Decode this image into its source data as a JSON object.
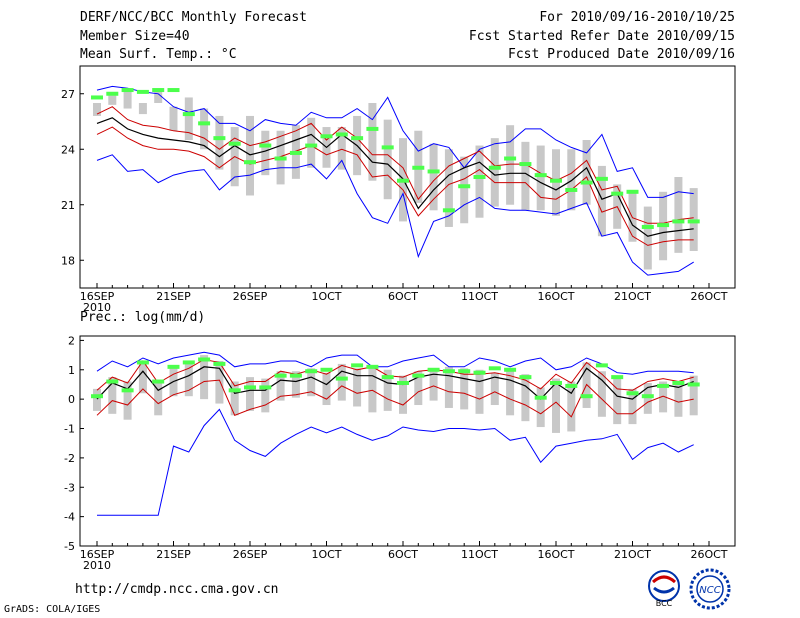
{
  "header": {
    "title": "DERF/NCC/BCC Monthly Forecast",
    "member_size": "Member Size=40",
    "variable": "Mean Surf. Temp.: °C",
    "period": "For 2010/09/16-2010/10/25",
    "started": "Fcst Started Refer Date 2010/09/15",
    "produced": "Fcst Produced Date 2010/09/16"
  },
  "precip_label": "Prec.: log(mm/d)",
  "url": "http://cmdp.ncc.cma.gov.cn",
  "credit": "GrADS: COLA/IGES",
  "logos": {
    "bcc": "BCC",
    "ncc": "NCC"
  },
  "colors": {
    "envelope": "#0000ff",
    "spread": "#cc0000",
    "mean": "#000000",
    "box": "#c8c8c8",
    "obs": "#4cff4c"
  },
  "chart_data": [
    {
      "type": "line",
      "title": "Mean Surf. Temp.: °C",
      "ylim": [
        16.5,
        28.5
      ],
      "yticks": [
        18,
        21,
        24,
        27
      ],
      "ytick_labels": [
        "18",
        "21",
        "24",
        "27"
      ],
      "xtick_days": [
        0,
        5,
        10,
        15,
        20,
        25,
        30,
        35,
        40
      ],
      "xtick_labels": [
        "16SEP",
        "21SEP",
        "26SEP",
        "1OCT",
        "6OCT",
        "11OCT",
        "16OCT",
        "21OCT",
        "26OCT"
      ],
      "xtick_sublabel": "2010",
      "x_days": [
        0,
        1,
        2,
        3,
        4,
        5,
        6,
        7,
        8,
        9,
        10,
        11,
        12,
        13,
        14,
        15,
        16,
        17,
        18,
        19,
        20,
        21,
        22,
        23,
        24,
        25,
        26,
        27,
        28,
        29,
        30,
        31,
        32,
        33,
        34,
        35,
        36,
        37,
        38,
        39
      ],
      "series": [
        {
          "name": "max",
          "values": [
            27.2,
            27.4,
            27.3,
            27.1,
            27.0,
            26.3,
            26.0,
            26.2,
            25.4,
            25.4,
            25.0,
            25.6,
            25.4,
            25.3,
            26.0,
            25.7,
            25.7,
            26.2,
            25.6,
            26.8,
            25.0,
            23.9,
            24.3,
            24.1,
            23.0,
            24.0,
            24.3,
            24.4,
            25.1,
            25.1,
            24.5,
            24.1,
            23.8,
            24.8,
            22.8,
            23.0,
            21.4,
            21.4,
            21.7,
            21.6
          ]
        },
        {
          "name": "upper",
          "values": [
            25.9,
            26.3,
            25.6,
            25.3,
            25.2,
            25.0,
            24.9,
            24.6,
            24.0,
            24.6,
            24.2,
            24.4,
            24.7,
            25.0,
            25.4,
            24.5,
            25.2,
            24.6,
            23.7,
            23.7,
            23.0,
            21.3,
            22.3,
            23.1,
            23.5,
            23.9,
            23.1,
            23.2,
            23.2,
            22.7,
            22.3,
            22.7,
            23.4,
            21.8,
            22.0,
            20.3,
            20.0,
            20.0,
            20.2,
            20.3
          ]
        },
        {
          "name": "mean",
          "values": [
            25.4,
            25.7,
            25.1,
            24.8,
            24.6,
            24.5,
            24.4,
            24.2,
            23.6,
            24.2,
            23.7,
            23.9,
            24.2,
            24.5,
            24.8,
            24.1,
            24.8,
            24.2,
            23.3,
            23.2,
            22.4,
            20.8,
            21.8,
            22.6,
            23.0,
            23.3,
            22.6,
            22.7,
            22.7,
            22.2,
            21.8,
            22.3,
            23.0,
            21.3,
            21.6,
            19.9,
            19.3,
            19.5,
            19.6,
            19.7
          ]
        },
        {
          "name": "lower",
          "values": [
            24.8,
            25.2,
            24.6,
            24.2,
            24.0,
            24.0,
            23.9,
            23.6,
            23.0,
            23.6,
            23.2,
            23.4,
            23.6,
            23.9,
            24.2,
            23.7,
            24.0,
            23.7,
            22.5,
            22.6,
            21.8,
            20.4,
            21.3,
            22.1,
            22.4,
            22.9,
            22.2,
            22.2,
            22.2,
            21.4,
            21.3,
            21.8,
            22.5,
            20.6,
            20.9,
            19.3,
            18.8,
            19.0,
            19.1,
            19.1
          ]
        },
        {
          "name": "min",
          "values": [
            23.4,
            23.7,
            22.8,
            22.9,
            22.2,
            22.6,
            22.8,
            22.9,
            21.8,
            22.5,
            22.6,
            22.9,
            23.0,
            23.0,
            23.2,
            22.4,
            23.4,
            21.6,
            20.3,
            20.0,
            21.6,
            18.2,
            20.1,
            20.4,
            21.0,
            21.4,
            20.8,
            20.7,
            20.7,
            20.6,
            20.5,
            20.8,
            21.1,
            19.3,
            19.5,
            17.9,
            17.2,
            17.3,
            17.4,
            17.9
          ]
        },
        {
          "name": "obs",
          "values": [
            26.8,
            27.0,
            27.2,
            27.1,
            27.2,
            27.2,
            25.9,
            25.4,
            24.6,
            24.3,
            23.3,
            24.2,
            23.5,
            23.8,
            24.2,
            24.7,
            24.8,
            24.6,
            25.1,
            24.1,
            22.3,
            23.0,
            22.8,
            20.7,
            22.0,
            22.5,
            23.0,
            23.5,
            23.2,
            22.6,
            22.3,
            21.8,
            22.2,
            22.4,
            21.6,
            21.7,
            19.8,
            19.9,
            20.1,
            20.1
          ]
        }
      ],
      "box_ranges": [
        [
          25.8,
          26.5
        ],
        [
          26.4,
          26.9
        ],
        [
          26.2,
          27.2
        ],
        [
          25.9,
          26.5
        ],
        [
          26.5,
          27.2
        ],
        [
          25.0,
          26.3
        ],
        [
          24.5,
          26.8
        ],
        [
          24.0,
          26.2
        ],
        [
          22.9,
          25.8
        ],
        [
          22.0,
          25.2
        ],
        [
          21.5,
          25.8
        ],
        [
          22.6,
          25.0
        ],
        [
          22.1,
          25.0
        ],
        [
          22.4,
          25.3
        ],
        [
          23.0,
          25.7
        ],
        [
          23.0,
          25.2
        ],
        [
          22.9,
          25.2
        ],
        [
          22.6,
          25.8
        ],
        [
          22.3,
          26.5
        ],
        [
          21.3,
          25.6
        ],
        [
          20.1,
          24.6
        ],
        [
          21.1,
          25.0
        ],
        [
          20.7,
          24.3
        ],
        [
          19.8,
          24.0
        ],
        [
          20.0,
          23.6
        ],
        [
          20.3,
          24.2
        ],
        [
          20.9,
          24.6
        ],
        [
          21.0,
          25.3
        ],
        [
          20.7,
          24.4
        ],
        [
          20.7,
          24.2
        ],
        [
          20.4,
          24.0
        ],
        [
          20.7,
          24.0
        ],
        [
          21.0,
          24.5
        ],
        [
          19.3,
          23.1
        ],
        [
          19.7,
          22.1
        ],
        [
          19.0,
          21.8
        ],
        [
          17.5,
          20.9
        ],
        [
          18.0,
          21.7
        ],
        [
          18.4,
          22.5
        ],
        [
          18.5,
          21.9
        ]
      ]
    },
    {
      "type": "line",
      "title": "Prec.: log(mm/d)",
      "ylim": [
        -5.0,
        2.15
      ],
      "yticks": [
        2,
        1,
        0,
        -1,
        -2,
        -3,
        -4,
        -5
      ],
      "ytick_labels": [
        "2",
        "1",
        "0",
        "-1",
        "-2",
        "-3",
        "-4",
        "-5"
      ],
      "xtick_days": [
        0,
        5,
        10,
        15,
        20,
        25,
        30,
        35,
        40
      ],
      "xtick_labels": [
        "16SEP",
        "21SEP",
        "26SEP",
        "1OCT",
        "6OCT",
        "11OCT",
        "16OCT",
        "21OCT",
        "26OCT"
      ],
      "xtick_sublabel": "2010",
      "x_days": [
        0,
        1,
        2,
        3,
        4,
        5,
        6,
        7,
        8,
        9,
        10,
        11,
        12,
        13,
        14,
        15,
        16,
        17,
        18,
        19,
        20,
        21,
        22,
        23,
        24,
        25,
        26,
        27,
        28,
        29,
        30,
        31,
        32,
        33,
        34,
        35,
        36,
        37,
        38,
        39
      ],
      "series": [
        {
          "name": "max",
          "values": [
            0.95,
            1.3,
            1.1,
            1.4,
            1.2,
            1.4,
            1.5,
            1.6,
            1.5,
            1.1,
            1.2,
            1.2,
            1.3,
            1.3,
            1.1,
            1.4,
            1.5,
            1.5,
            1.1,
            1.1,
            1.3,
            1.4,
            1.5,
            1.1,
            1.1,
            1.4,
            1.3,
            1.1,
            1.3,
            1.4,
            1.0,
            1.1,
            1.4,
            1.2,
            0.9,
            0.85,
            0.95,
            0.95,
            0.95,
            0.9
          ]
        },
        {
          "name": "upper",
          "values": [
            0.3,
            0.75,
            0.55,
            1.3,
            0.55,
            0.85,
            1.05,
            1.35,
            1.25,
            0.45,
            0.6,
            0.6,
            0.95,
            0.85,
            1.0,
            0.85,
            1.15,
            1.0,
            1.1,
            0.8,
            0.75,
            0.95,
            1.0,
            0.95,
            0.85,
            0.85,
            0.9,
            0.8,
            0.65,
            0.35,
            0.85,
            0.55,
            1.25,
            0.85,
            0.35,
            0.3,
            0.6,
            0.7,
            0.6,
            0.75
          ]
        },
        {
          "name": "mean",
          "values": [
            0.0,
            0.55,
            0.35,
            0.95,
            0.3,
            0.6,
            0.8,
            1.1,
            1.05,
            0.2,
            0.3,
            0.3,
            0.65,
            0.6,
            0.75,
            0.5,
            0.95,
            0.8,
            0.8,
            0.55,
            0.5,
            0.75,
            0.85,
            0.8,
            0.7,
            0.6,
            0.75,
            0.65,
            0.45,
            0.0,
            0.55,
            0.2,
            1.05,
            0.65,
            0.1,
            0.0,
            0.4,
            0.5,
            0.4,
            0.6
          ]
        },
        {
          "name": "lower",
          "values": [
            -0.55,
            -0.05,
            -0.2,
            0.35,
            -0.15,
            0.15,
            0.3,
            0.6,
            0.65,
            -0.55,
            -0.35,
            -0.2,
            0.1,
            0.15,
            0.25,
            0.0,
            0.45,
            0.2,
            0.3,
            0.0,
            -0.2,
            0.25,
            0.45,
            0.25,
            0.2,
            0.0,
            0.25,
            0.0,
            -0.2,
            -0.5,
            -0.1,
            -0.6,
            0.5,
            0.0,
            -0.5,
            -0.5,
            -0.1,
            0.1,
            -0.1,
            0.0
          ]
        },
        {
          "name": "min",
          "values": [
            -3.95,
            -3.95,
            -3.95,
            -3.95,
            -3.95,
            -1.6,
            -1.8,
            -0.9,
            -0.35,
            -1.4,
            -1.75,
            -1.95,
            -1.5,
            -1.2,
            -0.95,
            -1.15,
            -0.95,
            -1.2,
            -1.4,
            -1.25,
            -0.95,
            -1.05,
            -1.1,
            -1.0,
            -1.0,
            -1.05,
            -1.0,
            -1.4,
            -1.3,
            -2.15,
            -1.6,
            -1.5,
            -1.4,
            -1.35,
            -1.2,
            -2.05,
            -1.65,
            -1.5,
            -1.8,
            -1.55
          ]
        },
        {
          "name": "obs",
          "values": [
            0.1,
            0.6,
            0.3,
            1.25,
            0.6,
            1.1,
            1.25,
            1.35,
            1.2,
            0.3,
            0.4,
            0.4,
            0.8,
            0.8,
            0.95,
            1.0,
            0.7,
            1.15,
            1.1,
            0.75,
            0.55,
            0.8,
            1.0,
            0.95,
            0.95,
            0.9,
            1.05,
            1.0,
            0.75,
            0.05,
            0.55,
            0.45,
            0.1,
            1.15,
            0.75,
            0.2,
            0.1,
            0.45,
            0.55,
            0.5
          ]
        }
      ],
      "box_ranges": [
        [
          -0.4,
          0.35
        ],
        [
          -0.5,
          0.75
        ],
        [
          -0.7,
          0.6
        ],
        [
          0.2,
          1.25
        ],
        [
          -0.55,
          0.6
        ],
        [
          0.1,
          1.15
        ],
        [
          0.1,
          1.3
        ],
        [
          0.0,
          1.5
        ],
        [
          -0.15,
          1.3
        ],
        [
          -0.55,
          0.6
        ],
        [
          -0.4,
          0.75
        ],
        [
          -0.45,
          0.7
        ],
        [
          -0.05,
          0.95
        ],
        [
          0.05,
          0.95
        ],
        [
          0.1,
          1.05
        ],
        [
          -0.2,
          0.9
        ],
        [
          -0.05,
          1.2
        ],
        [
          -0.25,
          1.05
        ],
        [
          -0.45,
          1.15
        ],
        [
          -0.4,
          1.0
        ],
        [
          -0.5,
          0.8
        ],
        [
          -0.2,
          0.95
        ],
        [
          -0.05,
          1.0
        ],
        [
          -0.3,
          1.1
        ],
        [
          -0.35,
          1.05
        ],
        [
          -0.5,
          1.0
        ],
        [
          -0.2,
          0.9
        ],
        [
          -0.55,
          0.95
        ],
        [
          -0.75,
          0.85
        ],
        [
          -0.95,
          0.4
        ],
        [
          -1.15,
          0.7
        ],
        [
          -1.1,
          0.6
        ],
        [
          -0.3,
          1.25
        ],
        [
          -0.6,
          0.95
        ],
        [
          -0.85,
          0.7
        ],
        [
          -0.85,
          0.35
        ],
        [
          -0.5,
          0.55
        ],
        [
          -0.45,
          0.6
        ],
        [
          -0.6,
          0.6
        ],
        [
          -0.55,
          0.8
        ]
      ]
    }
  ]
}
